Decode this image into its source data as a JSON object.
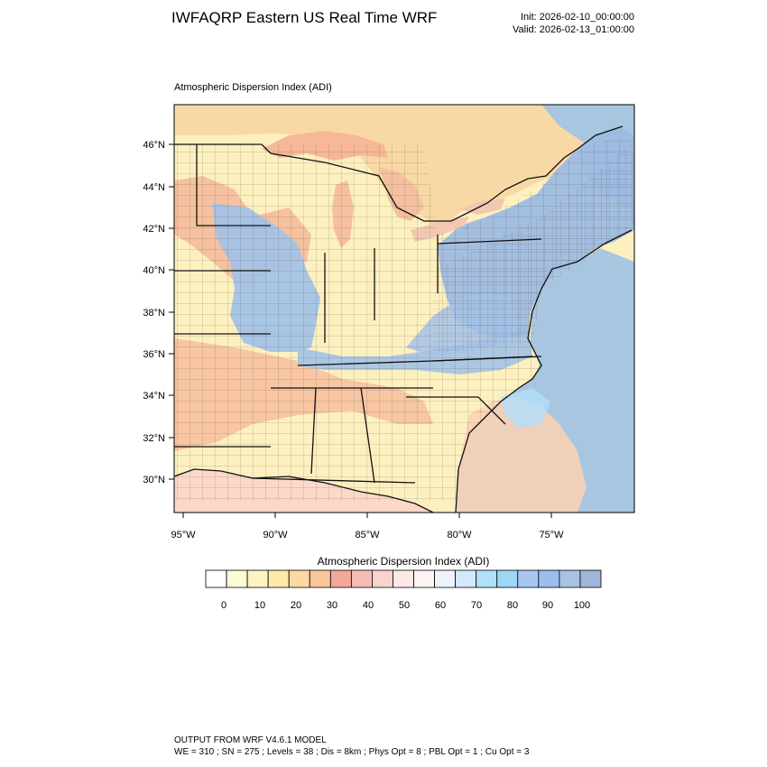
{
  "header": {
    "title": "IWFAQRP Eastern US Real Time WRF",
    "init": "Init: 2026-02-10_00:00:00",
    "valid": "Valid: 2026-02-13_01:00:00"
  },
  "plot": {
    "label": "Atmospheric Dispersion Index   (ADI)",
    "lat_labels": [
      "46°N",
      "44°N",
      "42°N",
      "40°N",
      "38°N",
      "36°N",
      "34°N",
      "32°N",
      "30°N"
    ],
    "lon_labels": [
      "95°W",
      "90°W",
      "85°W",
      "80°W",
      "75°W"
    ],
    "colors": {
      "ocean": "#a8c6e0",
      "low": "#fdf3c0",
      "mid": "#f5b89a",
      "high": "#a4c2e6"
    }
  },
  "colorbar": {
    "title": "Atmospheric Dispersion Index  (ADI)",
    "tick_labels": [
      "0",
      "10",
      "20",
      "30",
      "40",
      "50",
      "60",
      "70",
      "80",
      "90",
      "100"
    ],
    "bins": [
      "#ffffff",
      "#fffbd8",
      "#fff3c2",
      "#fde9a8",
      "#fbd9a0",
      "#f8c69a",
      "#f2a899",
      "#f6bcb4",
      "#f9d3cd",
      "#fce8e4",
      "#fdf4f4",
      "#eef2fb",
      "#d2e9fb",
      "#b2dffa",
      "#9ed6f8",
      "#a7c7f0",
      "#9cbdee",
      "#a9c1e3",
      "#9fb6d6"
    ]
  },
  "footer": {
    "line1": "OUTPUT FROM WRF V4.6.1 MODEL",
    "line2": "WE = 310 ; SN = 275 ; Levels = 38 ; Dis = 8km ; Phys Opt = 8 ; PBL Opt = 1 ; Cu Opt = 3"
  }
}
